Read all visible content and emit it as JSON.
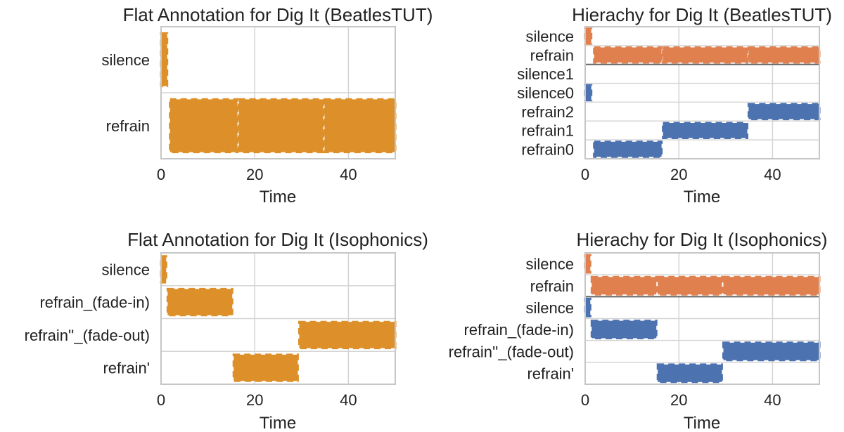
{
  "colors": {
    "flat": "#dd8f29",
    "upper": "#e0804f",
    "lower": "#4c72b0",
    "grid": "#d4d4d4",
    "spine": "#c6c6c6",
    "divider": "#666666"
  },
  "chart_data": [
    {
      "id": "p0",
      "type": "segment-timeline",
      "title": "Flat Annotation for Dig It (BeatlesTUT)",
      "xlabel": "Time",
      "xlim": [
        0,
        50
      ],
      "xticks": [
        0,
        20,
        40
      ],
      "labels": [
        "silence",
        "refrain"
      ],
      "segments": [
        {
          "label": "silence",
          "start": 0,
          "end": 1.3
        },
        {
          "label": "refrain",
          "start": 1.9,
          "end": 16.3
        },
        {
          "label": "refrain",
          "start": 16.6,
          "end": 34.6
        },
        {
          "label": "refrain",
          "start": 34.9,
          "end": 50
        }
      ]
    },
    {
      "id": "p1",
      "type": "hierarchy-timeline",
      "title": "Hierachy for Dig It (BeatlesTUT)",
      "xlabel": "Time",
      "xlim": [
        0,
        50
      ],
      "xticks": [
        0,
        20,
        40
      ],
      "upper": {
        "labels": [
          "silence",
          "refrain"
        ],
        "segments": [
          {
            "label": "silence",
            "start": 0,
            "end": 1.3
          },
          {
            "label": "refrain",
            "start": 1.9,
            "end": 16.3
          },
          {
            "label": "refrain",
            "start": 16.6,
            "end": 34.6
          },
          {
            "label": "refrain",
            "start": 34.9,
            "end": 50
          }
        ]
      },
      "lower": {
        "labels": [
          "silence1",
          "silence0",
          "refrain2",
          "refrain1",
          "refrain0"
        ],
        "segments": [
          {
            "label": "silence0",
            "start": 0,
            "end": 1.3
          },
          {
            "label": "refrain0",
            "start": 1.9,
            "end": 16.3
          },
          {
            "label": "refrain1",
            "start": 16.6,
            "end": 34.6
          },
          {
            "label": "refrain2",
            "start": 34.9,
            "end": 50
          }
        ]
      }
    },
    {
      "id": "p2",
      "type": "segment-timeline",
      "title": "Flat Annotation for Dig It (Isophonics)",
      "xlabel": "Time",
      "xlim": [
        0,
        50
      ],
      "xticks": [
        0,
        20,
        40
      ],
      "labels": [
        "silence",
        "refrain_(fade-in)",
        "refrain''_(fade-out)",
        "refrain'"
      ],
      "segments": [
        {
          "label": "silence",
          "start": 0,
          "end": 1.1
        },
        {
          "label": "refrain_(fade-in)",
          "start": 1.4,
          "end": 15.2
        },
        {
          "label": "refrain'",
          "start": 15.5,
          "end": 29.2
        },
        {
          "label": "refrain''_(fade-out)",
          "start": 29.5,
          "end": 50
        }
      ]
    },
    {
      "id": "p3",
      "type": "hierarchy-timeline",
      "title": "Hierachy for Dig It (Isophonics)",
      "xlabel": "Time",
      "xlim": [
        0,
        50
      ],
      "xticks": [
        0,
        20,
        40
      ],
      "upper": {
        "labels": [
          "silence",
          "refrain"
        ],
        "segments": [
          {
            "label": "silence",
            "start": 0,
            "end": 1.1
          },
          {
            "label": "refrain",
            "start": 1.4,
            "end": 15.2
          },
          {
            "label": "refrain",
            "start": 15.5,
            "end": 29.2
          },
          {
            "label": "refrain",
            "start": 29.5,
            "end": 50
          }
        ]
      },
      "lower": {
        "labels": [
          "silence",
          "refrain_(fade-in)",
          "refrain''_(fade-out)",
          "refrain'"
        ],
        "segments": [
          {
            "label": "silence",
            "start": 0,
            "end": 1.1
          },
          {
            "label": "refrain_(fade-in)",
            "start": 1.4,
            "end": 15.2
          },
          {
            "label": "refrain'",
            "start": 15.5,
            "end": 29.2
          },
          {
            "label": "refrain''_(fade-out)",
            "start": 29.5,
            "end": 50
          }
        ]
      }
    }
  ]
}
